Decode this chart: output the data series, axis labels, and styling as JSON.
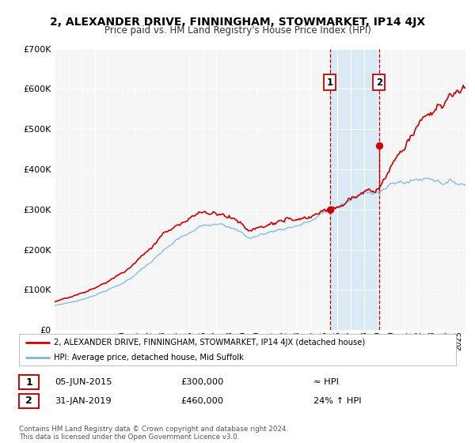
{
  "title": "2, ALEXANDER DRIVE, FINNINGHAM, STOWMARKET, IP14 4JX",
  "subtitle": "Price paid vs. HM Land Registry's House Price Index (HPI)",
  "legend_line1": "2, ALEXANDER DRIVE, FINNINGHAM, STOWMARKET, IP14 4JX (detached house)",
  "legend_line2": "HPI: Average price, detached house, Mid Suffolk",
  "transaction1_date": "05-JUN-2015",
  "transaction1_price": 300000,
  "transaction1_hpi": "≈ HPI",
  "transaction2_date": "31-JAN-2019",
  "transaction2_price": 460000,
  "transaction2_hpi": "24% ↑ HPI",
  "footer": "Contains HM Land Registry data © Crown copyright and database right 2024.\nThis data is licensed under the Open Government Licence v3.0.",
  "hpi_color": "#7ab8d9",
  "price_color": "#cc0000",
  "sale_dot_color": "#cc0000",
  "background_color": "#ffffff",
  "plot_bg_color": "#f5f5f5",
  "shaded_region_color": "#daeaf5",
  "vline_color": "#cc0000",
  "grid_color": "#ffffff",
  "ylim": [
    0,
    700000
  ],
  "xlim_start": 1995.0,
  "xlim_end": 2025.5,
  "transaction1_year": 2015.44,
  "transaction2_year": 2019.08
}
